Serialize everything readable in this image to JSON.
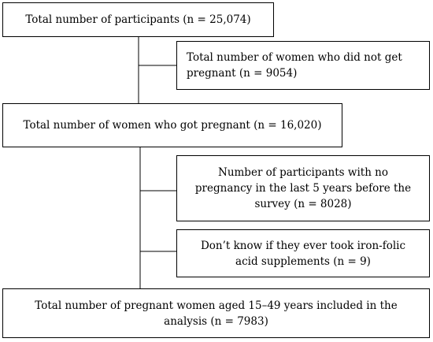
{
  "flowchart": {
    "boxes": {
      "total_participants": "Total number of participants (n = 25,074)",
      "not_pregnant": "Total number of women who did not get pregnant (n = 9054)",
      "got_pregnant": "Total number of women who got pregnant (n = 16,020)",
      "no_pregnancy_last5": "Number of participants with no pregnancy in the last 5 years before the survey (n = 8028)",
      "dont_know_ifa": "Don’t know if they ever took iron-folic acid supplements (n = 9)",
      "included": "Total number of pregnant women aged 15–49 years included in the analysis (n = 7983)"
    }
  }
}
